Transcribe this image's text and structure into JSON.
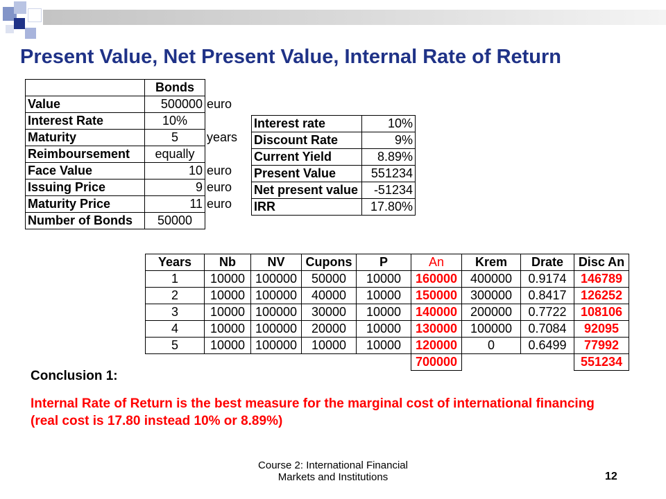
{
  "slide": {
    "title": "Present Value, Net Present Value, Internal Rate of Return",
    "footer_line1": "Course 2: International Financial",
    "footer_line2": "Markets and Institutions",
    "page_number": "12"
  },
  "bonds": {
    "header": "Bonds",
    "rows": [
      {
        "label": "Value",
        "value": "500000",
        "unit": "euro"
      },
      {
        "label": "Interest Rate",
        "value": "10%",
        "unit": ""
      },
      {
        "label": "Maturity",
        "value": "5",
        "unit": "years"
      },
      {
        "label": "Reimboursement",
        "value": "equally",
        "unit": ""
      },
      {
        "label": "Face Value",
        "value": "10",
        "unit": "euro"
      },
      {
        "label": "Issuing Price",
        "value": "9",
        "unit": "euro"
      },
      {
        "label": "Maturity Price",
        "value": "11",
        "unit": "euro"
      },
      {
        "label": "Number of Bonds",
        "value": "50000",
        "unit": ""
      }
    ]
  },
  "rates": {
    "rows": [
      {
        "label": "Interest rate",
        "value": "10%"
      },
      {
        "label": "Discount Rate",
        "value": "9%"
      },
      {
        "label": "Current Yield",
        "value": "8.89%"
      },
      {
        "label": "Present Value",
        "value": "551234"
      },
      {
        "label": "Net present value",
        "value": "-51234"
      },
      {
        "label": "IRR",
        "value": "17.80%"
      }
    ]
  },
  "schedule": {
    "headers": [
      "Years",
      "Nb",
      "NV",
      "Cupons",
      "P",
      "An",
      "Krem",
      "Drate",
      "Disc An"
    ],
    "rows": [
      [
        "1",
        "10000",
        "100000",
        "50000",
        "10000",
        "160000",
        "400000",
        "0.9174",
        "146789"
      ],
      [
        "2",
        "10000",
        "100000",
        "40000",
        "10000",
        "150000",
        "300000",
        "0.8417",
        "126252"
      ],
      [
        "3",
        "10000",
        "100000",
        "30000",
        "10000",
        "140000",
        "200000",
        "0.7722",
        "108106"
      ],
      [
        "4",
        "10000",
        "100000",
        "20000",
        "10000",
        "130000",
        "100000",
        "0.7084",
        "92095"
      ],
      [
        "5",
        "10000",
        "100000",
        "10000",
        "10000",
        "120000",
        "0",
        "0.6499",
        "77992"
      ]
    ],
    "totals": {
      "an": "700000",
      "disc_an": "551234"
    }
  },
  "conclusion": {
    "heading": "Conclusion 1:",
    "text": "Internal Rate of Return is the best measure for the marginal cost of international financing (real cost is 17.80 instead 10% or 8.89%)"
  },
  "colors": {
    "title": "#1f3287",
    "highlight": "#ff0000"
  }
}
